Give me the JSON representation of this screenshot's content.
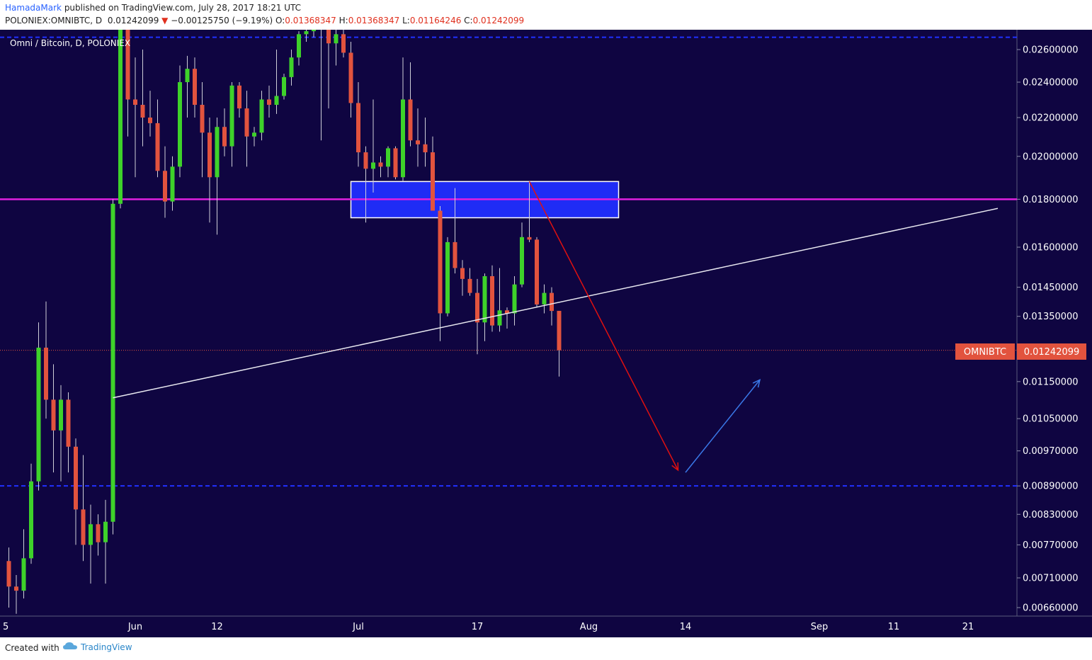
{
  "header": {
    "author": "HamadaMark",
    "published_text": "published on TradingView.com, July 28, 2017 18:21 UTC",
    "symbol": "POLONIEX:OMNIBTC, D",
    "price": "0.01242099",
    "change_arrow": "▼",
    "change": "−0.00125750 (−9.19%)",
    "open_label": "O:",
    "open": "0.01368347",
    "high_label": "H:",
    "high": "0.01368347",
    "low_label": "L:",
    "low": "0.01164246",
    "close_label": "C:",
    "close": "0.01242099"
  },
  "chart_title": "Omni / Bitcoin, D, POLONIEX",
  "price_tag": {
    "symbol": "OMNIBTC",
    "value": "0.01242099"
  },
  "footer": {
    "created_with": "Created with",
    "brand": "TradingView"
  },
  "colors": {
    "background": "#0f0541",
    "up": "#3ed22a",
    "down": "#e2533e",
    "magenta_level": "#e020e0",
    "blue_level": "#2030ff",
    "zone_fill": "#1f2cf5",
    "trendline": "#e8e8f0",
    "arrow_down": "#e01010",
    "arrow_up": "#3a78e8",
    "price_tag": "#e2533e"
  },
  "chart_data": {
    "type": "candlestick",
    "title": "Omni / Bitcoin, D, POLONIEX",
    "y_scale": "log",
    "y_ticks": [
      "0.02600000",
      "0.02400000",
      "0.02200000",
      "0.02000000",
      "0.01800000",
      "0.01600000",
      "0.01450000",
      "0.01350000",
      "0.01150000",
      "0.01050000",
      "0.00970000",
      "0.00890000",
      "0.00830000",
      "0.00770000",
      "0.00710000",
      "0.00660000"
    ],
    "x_ticks": [
      "5",
      "Jun",
      "12",
      "Jul",
      "17",
      "Aug",
      "14",
      "Sep",
      "11",
      "21"
    ],
    "candles": [
      {
        "d": "2017-05-15",
        "o": 0.0074,
        "h": 0.00765,
        "l": 0.0066,
        "c": 0.00695
      },
      {
        "d": "2017-05-16",
        "o": 0.00695,
        "h": 0.00715,
        "l": 0.0065,
        "c": 0.00688
      },
      {
        "d": "2017-05-17",
        "o": 0.00688,
        "h": 0.008,
        "l": 0.00675,
        "c": 0.00745
      },
      {
        "d": "2017-05-18",
        "o": 0.00745,
        "h": 0.0094,
        "l": 0.00735,
        "c": 0.009
      },
      {
        "d": "2017-05-19",
        "o": 0.009,
        "h": 0.0133,
        "l": 0.0088,
        "c": 0.0125
      },
      {
        "d": "2017-05-20",
        "o": 0.0125,
        "h": 0.014,
        "l": 0.0105,
        "c": 0.011
      },
      {
        "d": "2017-05-21",
        "o": 0.011,
        "h": 0.012,
        "l": 0.0092,
        "c": 0.0102
      },
      {
        "d": "2017-05-22",
        "o": 0.0102,
        "h": 0.0114,
        "l": 0.009,
        "c": 0.011
      },
      {
        "d": "2017-05-23",
        "o": 0.011,
        "h": 0.0112,
        "l": 0.0092,
        "c": 0.0098
      },
      {
        "d": "2017-05-24",
        "o": 0.0098,
        "h": 0.01,
        "l": 0.0077,
        "c": 0.0084
      },
      {
        "d": "2017-05-25",
        "o": 0.0084,
        "h": 0.0096,
        "l": 0.0074,
        "c": 0.0077
      },
      {
        "d": "2017-05-26",
        "o": 0.0077,
        "h": 0.0085,
        "l": 0.007,
        "c": 0.0081
      },
      {
        "d": "2017-05-27",
        "o": 0.0081,
        "h": 0.0083,
        "l": 0.0075,
        "c": 0.00775
      },
      {
        "d": "2017-05-28",
        "o": 0.00775,
        "h": 0.0086,
        "l": 0.007,
        "c": 0.00815
      },
      {
        "d": "2017-05-29",
        "o": 0.00815,
        "h": 0.018,
        "l": 0.0079,
        "c": 0.0178
      },
      {
        "d": "2017-05-30",
        "o": 0.0178,
        "h": 0.028,
        "l": 0.0176,
        "c": 0.0275
      },
      {
        "d": "2017-05-31",
        "o": 0.0275,
        "h": 0.0278,
        "l": 0.021,
        "c": 0.023
      },
      {
        "d": "2017-06-01",
        "o": 0.023,
        "h": 0.0255,
        "l": 0.019,
        "c": 0.0227
      },
      {
        "d": "2017-06-02",
        "o": 0.0227,
        "h": 0.026,
        "l": 0.0205,
        "c": 0.022
      },
      {
        "d": "2017-06-03",
        "o": 0.022,
        "h": 0.0235,
        "l": 0.021,
        "c": 0.0217
      },
      {
        "d": "2017-06-04",
        "o": 0.0217,
        "h": 0.023,
        "l": 0.019,
        "c": 0.0193
      },
      {
        "d": "2017-06-05",
        "o": 0.0193,
        "h": 0.0205,
        "l": 0.0172,
        "c": 0.0179
      },
      {
        "d": "2017-06-06",
        "o": 0.0179,
        "h": 0.02,
        "l": 0.0175,
        "c": 0.0195
      },
      {
        "d": "2017-06-07",
        "o": 0.0195,
        "h": 0.025,
        "l": 0.019,
        "c": 0.024
      },
      {
        "d": "2017-06-08",
        "o": 0.024,
        "h": 0.0256,
        "l": 0.022,
        "c": 0.0248
      },
      {
        "d": "2017-06-09",
        "o": 0.0248,
        "h": 0.0255,
        "l": 0.022,
        "c": 0.0227
      },
      {
        "d": "2017-06-10",
        "o": 0.0227,
        "h": 0.024,
        "l": 0.019,
        "c": 0.0212
      },
      {
        "d": "2017-06-11",
        "o": 0.0212,
        "h": 0.022,
        "l": 0.017,
        "c": 0.019
      },
      {
        "d": "2017-06-12",
        "o": 0.019,
        "h": 0.022,
        "l": 0.0165,
        "c": 0.0215
      },
      {
        "d": "2017-06-13",
        "o": 0.0215,
        "h": 0.0225,
        "l": 0.02,
        "c": 0.0205
      },
      {
        "d": "2017-06-14",
        "o": 0.0205,
        "h": 0.024,
        "l": 0.0195,
        "c": 0.0238
      },
      {
        "d": "2017-06-15",
        "o": 0.0238,
        "h": 0.024,
        "l": 0.022,
        "c": 0.0225
      },
      {
        "d": "2017-06-16",
        "o": 0.0225,
        "h": 0.0235,
        "l": 0.0195,
        "c": 0.021
      },
      {
        "d": "2017-06-17",
        "o": 0.021,
        "h": 0.0215,
        "l": 0.0205,
        "c": 0.0212
      },
      {
        "d": "2017-06-18",
        "o": 0.0212,
        "h": 0.0235,
        "l": 0.0208,
        "c": 0.023
      },
      {
        "d": "2017-06-19",
        "o": 0.023,
        "h": 0.0238,
        "l": 0.022,
        "c": 0.0227
      },
      {
        "d": "2017-06-20",
        "o": 0.0227,
        "h": 0.026,
        "l": 0.0222,
        "c": 0.0232
      },
      {
        "d": "2017-06-21",
        "o": 0.0232,
        "h": 0.0245,
        "l": 0.023,
        "c": 0.0243
      },
      {
        "d": "2017-06-22",
        "o": 0.0243,
        "h": 0.026,
        "l": 0.0238,
        "c": 0.0255
      },
      {
        "d": "2017-06-23",
        "o": 0.0255,
        "h": 0.0272,
        "l": 0.025,
        "c": 0.027
      },
      {
        "d": "2017-06-24",
        "o": 0.027,
        "h": 0.0275,
        "l": 0.0265,
        "c": 0.0272
      },
      {
        "d": "2017-06-25",
        "o": 0.0272,
        "h": 0.0276,
        "l": 0.0268,
        "c": 0.0274
      },
      {
        "d": "2017-06-26",
        "o": 0.0274,
        "h": 0.0276,
        "l": 0.0208,
        "c": 0.0275
      },
      {
        "d": "2017-06-27",
        "o": 0.0275,
        "h": 0.0276,
        "l": 0.0225,
        "c": 0.0264
      },
      {
        "d": "2017-06-28",
        "o": 0.0264,
        "h": 0.0276,
        "l": 0.025,
        "c": 0.027
      },
      {
        "d": "2017-06-29",
        "o": 0.027,
        "h": 0.0276,
        "l": 0.0255,
        "c": 0.0258
      },
      {
        "d": "2017-06-30",
        "o": 0.0258,
        "h": 0.0265,
        "l": 0.022,
        "c": 0.0228
      },
      {
        "d": "2017-07-01",
        "o": 0.0228,
        "h": 0.024,
        "l": 0.0195,
        "c": 0.0202
      },
      {
        "d": "2017-07-02",
        "o": 0.0202,
        "h": 0.0205,
        "l": 0.017,
        "c": 0.0194
      },
      {
        "d": "2017-07-03",
        "o": 0.0194,
        "h": 0.023,
        "l": 0.0183,
        "c": 0.0197
      },
      {
        "d": "2017-07-04",
        "o": 0.0197,
        "h": 0.02,
        "l": 0.019,
        "c": 0.0195
      },
      {
        "d": "2017-07-05",
        "o": 0.0195,
        "h": 0.0205,
        "l": 0.019,
        "c": 0.0204
      },
      {
        "d": "2017-07-06",
        "o": 0.0204,
        "h": 0.0205,
        "l": 0.0189,
        "c": 0.019
      },
      {
        "d": "2017-07-07",
        "o": 0.019,
        "h": 0.0255,
        "l": 0.0188,
        "c": 0.023
      },
      {
        "d": "2017-07-08",
        "o": 0.023,
        "h": 0.0252,
        "l": 0.0205,
        "c": 0.0208
      },
      {
        "d": "2017-07-09",
        "o": 0.0208,
        "h": 0.0225,
        "l": 0.0195,
        "c": 0.0206
      },
      {
        "d": "2017-07-10",
        "o": 0.0206,
        "h": 0.022,
        "l": 0.0195,
        "c": 0.0202
      },
      {
        "d": "2017-07-11",
        "o": 0.0202,
        "h": 0.021,
        "l": 0.0175,
        "c": 0.0175
      },
      {
        "d": "2017-07-12",
        "o": 0.0175,
        "h": 0.0177,
        "l": 0.0127,
        "c": 0.0136
      },
      {
        "d": "2017-07-13",
        "o": 0.0136,
        "h": 0.0164,
        "l": 0.0135,
        "c": 0.0162
      },
      {
        "d": "2017-07-14",
        "o": 0.0162,
        "h": 0.0185,
        "l": 0.015,
        "c": 0.0152
      },
      {
        "d": "2017-07-15",
        "o": 0.0152,
        "h": 0.0155,
        "l": 0.0142,
        "c": 0.0148
      },
      {
        "d": "2017-07-16",
        "o": 0.0148,
        "h": 0.0152,
        "l": 0.0142,
        "c": 0.0143
      },
      {
        "d": "2017-07-17",
        "o": 0.0143,
        "h": 0.0148,
        "l": 0.0123,
        "c": 0.0133
      },
      {
        "d": "2017-07-18",
        "o": 0.0133,
        "h": 0.015,
        "l": 0.0127,
        "c": 0.0149
      },
      {
        "d": "2017-07-19",
        "o": 0.0149,
        "h": 0.0153,
        "l": 0.013,
        "c": 0.0132
      },
      {
        "d": "2017-07-20",
        "o": 0.0132,
        "h": 0.0152,
        "l": 0.013,
        "c": 0.0137
      },
      {
        "d": "2017-07-21",
        "o": 0.0137,
        "h": 0.0138,
        "l": 0.0131,
        "c": 0.0136
      },
      {
        "d": "2017-07-22",
        "o": 0.0136,
        "h": 0.0149,
        "l": 0.0132,
        "c": 0.0146
      },
      {
        "d": "2017-07-23",
        "o": 0.0146,
        "h": 0.017,
        "l": 0.0145,
        "c": 0.0164
      },
      {
        "d": "2017-07-24",
        "o": 0.0164,
        "h": 0.0188,
        "l": 0.0162,
        "c": 0.0163
      },
      {
        "d": "2017-07-25",
        "o": 0.0163,
        "h": 0.0164,
        "l": 0.0138,
        "c": 0.0139
      },
      {
        "d": "2017-07-26",
        "o": 0.0139,
        "h": 0.0146,
        "l": 0.0136,
        "c": 0.0143
      },
      {
        "d": "2017-07-27",
        "o": 0.0143,
        "h": 0.0145,
        "l": 0.0132,
        "c": 0.01368
      },
      {
        "d": "2017-07-28",
        "o": 0.01368347,
        "h": 0.01368347,
        "l": 0.01164246,
        "c": 0.01242099
      }
    ],
    "levels": [
      {
        "price": 0.018,
        "style": "solid",
        "color": "magenta"
      },
      {
        "price": 0.0268,
        "style": "dashed",
        "color": "blue"
      },
      {
        "price": 0.0089,
        "style": "dashed",
        "color": "blue"
      }
    ],
    "zone": {
      "x_start": "2017-06-30",
      "x_end": "2017-08-05",
      "price_top": 0.0188,
      "price_bottom": 0.0172
    },
    "trendline": {
      "x_start": "2017-05-29",
      "p_start": 0.01105,
      "x_end": "2017-09-25",
      "p_end": 0.0176
    },
    "arrows": [
      {
        "from_date": "2017-07-24",
        "from_price": 0.0188,
        "to_date": "2017-08-13",
        "to_price": 0.00925,
        "color": "red"
      },
      {
        "from_date": "2017-08-14",
        "from_price": 0.0092,
        "to_date": "2017-08-24",
        "to_price": 0.01155,
        "color": "blue"
      }
    ],
    "last_price": 0.01242099
  }
}
